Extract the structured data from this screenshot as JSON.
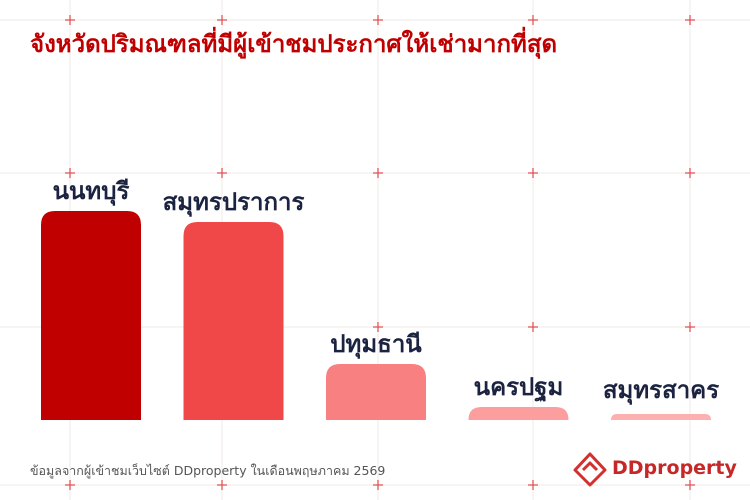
{
  "chart_data": {
    "type": "bar",
    "title": "จังหวัดปริมณฑลที่มีผู้เข้าชมประกาศให้เช่ามากที่สุด",
    "categories": [
      "นนทบุรี",
      "สมุทรปราการ",
      "ปทุมธานี",
      "นครปฐม",
      "สมุทรสาคร"
    ],
    "values": [
      209,
      198,
      56,
      13,
      6
    ],
    "colors": [
      "#c00000",
      "#f04848",
      "#f98080",
      "#fc9e9e",
      "#fcb0b0"
    ],
    "source": "ข้อมูลจากผู้เข้าชมเว็บไซต์ DDproperty ในเดือนพฤษภาคม 2569",
    "logo": "DDproperty"
  }
}
